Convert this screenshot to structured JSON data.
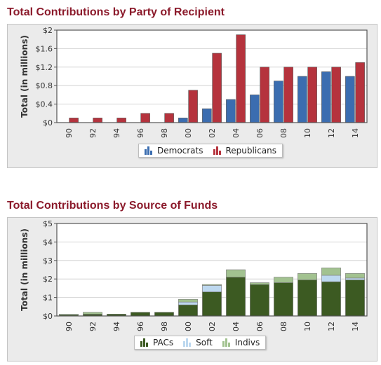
{
  "chart_data": [
    {
      "type": "bar",
      "title": "Total Contributions by Party of Recipient",
      "ylabel": "Total (in millions)",
      "xlabel": "",
      "categories": [
        "90",
        "92",
        "94",
        "96",
        "98",
        "00",
        "02",
        "04",
        "06",
        "08",
        "10",
        "12",
        "14"
      ],
      "yticks": [
        "$0",
        "$0.4",
        "$0.8",
        "$1.2",
        "$1.6",
        "$2"
      ],
      "ylim": [
        0,
        2
      ],
      "grid": true,
      "legend_position": "bottom",
      "series": [
        {
          "name": "Democrats",
          "color": "#3b6db0",
          "values": [
            0,
            0,
            0,
            0,
            0,
            0.1,
            0.3,
            0.5,
            0.6,
            0.9,
            1.0,
            1.1,
            1.0
          ]
        },
        {
          "name": "Republicans",
          "color": "#b5333d",
          "values": [
            0.1,
            0.1,
            0.1,
            0.2,
            0.2,
            0.7,
            1.5,
            1.9,
            1.2,
            1.2,
            1.2,
            1.2,
            1.3
          ]
        }
      ]
    },
    {
      "type": "bar",
      "stacked": true,
      "title": "Total Contributions by Source of Funds",
      "ylabel": "Total (in millions)",
      "xlabel": "",
      "categories": [
        "90",
        "92",
        "94",
        "96",
        "98",
        "00",
        "02",
        "04",
        "06",
        "08",
        "10",
        "12",
        "14"
      ],
      "yticks": [
        "$0",
        "$1",
        "$2",
        "$3",
        "$4",
        "$5"
      ],
      "ylim": [
        0,
        5
      ],
      "grid": true,
      "legend_position": "bottom",
      "series": [
        {
          "name": "PACs",
          "color": "#3c5a22",
          "values": [
            0.05,
            0.1,
            0.1,
            0.2,
            0.2,
            0.6,
            1.3,
            2.1,
            1.7,
            1.8,
            1.95,
            1.85,
            1.95
          ]
        },
        {
          "name": "Soft",
          "color": "#bdd8ef",
          "values": [
            0,
            0,
            0,
            0,
            0,
            0.15,
            0.35,
            0,
            0,
            0,
            0,
            0.35,
            0.1
          ]
        },
        {
          "name": "Indivs",
          "color": "#a2c290",
          "values": [
            0.05,
            0.1,
            0,
            0,
            0,
            0.15,
            0.05,
            0.4,
            0.1,
            0.3,
            0.35,
            0.4,
            0.25
          ]
        }
      ]
    }
  ]
}
